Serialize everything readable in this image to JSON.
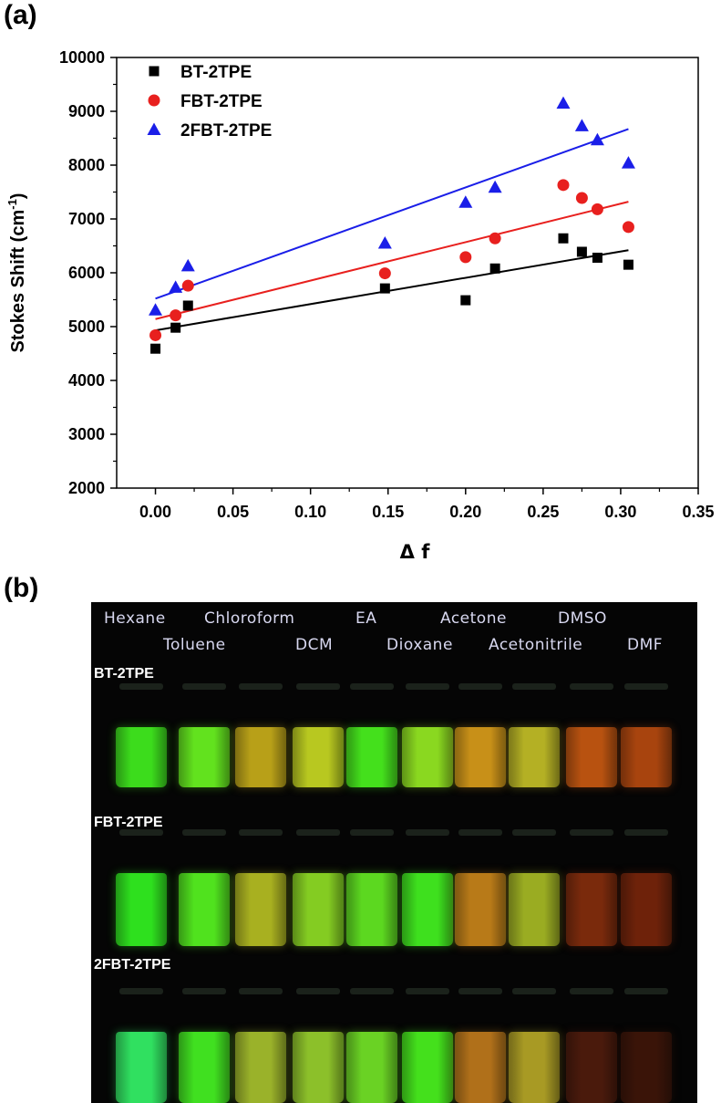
{
  "panels": {
    "a": "(a)",
    "b": "(b)"
  },
  "chart_data": {
    "type": "scatter",
    "xlabel": "Δ f",
    "ylabel": "Stokes Shift (cm",
    "ylabel_sup": "-1",
    "ylabel_close": ")",
    "xlim": [
      -0.025,
      0.35
    ],
    "ylim": [
      2000,
      10000
    ],
    "x_ticks": [
      0.0,
      0.05,
      0.1,
      0.15,
      0.2,
      0.25,
      0.3,
      0.35
    ],
    "x_tick_labels": [
      "0.00",
      "0.05",
      "0.10",
      "0.15",
      "0.20",
      "0.25",
      "0.30",
      "0.35"
    ],
    "y_ticks": [
      2000,
      3000,
      4000,
      5000,
      6000,
      7000,
      8000,
      9000,
      10000
    ],
    "y_tick_labels": [
      "2000",
      "3000",
      "4000",
      "5000",
      "6000",
      "7000",
      "8000",
      "9000",
      "10000"
    ],
    "legend_position": "top-left",
    "series": [
      {
        "name": "BT-2TPE",
        "marker": "square",
        "color": "#000000",
        "x": [
          0.0,
          0.013,
          0.021,
          0.148,
          0.2,
          0.219,
          0.263,
          0.275,
          0.285,
          0.305
        ],
        "y": [
          4590,
          4980,
          5390,
          5710,
          5490,
          6080,
          6640,
          6390,
          6280,
          6150
        ],
        "fit": [
          [
            0.0,
            4930
          ],
          [
            0.305,
            6420
          ]
        ]
      },
      {
        "name": "FBT-2TPE",
        "marker": "circle",
        "color": "#e8201e",
        "x": [
          0.0,
          0.013,
          0.021,
          0.148,
          0.2,
          0.219,
          0.263,
          0.275,
          0.285,
          0.305
        ],
        "y": [
          4840,
          5210,
          5760,
          5990,
          6290,
          6640,
          7630,
          7390,
          7180,
          6850
        ],
        "fit": [
          [
            0.0,
            5140
          ],
          [
            0.305,
            7320
          ]
        ]
      },
      {
        "name": "2FBT-2TPE",
        "marker": "triangle",
        "color": "#1a1ee8",
        "x": [
          0.0,
          0.013,
          0.021,
          0.148,
          0.2,
          0.219,
          0.263,
          0.275,
          0.285,
          0.305
        ],
        "y": [
          5310,
          5730,
          6130,
          6550,
          7310,
          7590,
          9150,
          8730,
          8470,
          8040
        ],
        "fit": [
          [
            0.0,
            5520
          ],
          [
            0.305,
            8670
          ]
        ]
      }
    ]
  },
  "photo": {
    "solvents_top": [
      "Hexane",
      "Chloroform",
      "EA",
      "Acetone",
      "DMSO"
    ],
    "solvents_bottom": [
      "Toluene",
      "DCM",
      "Dioxane",
      "Acetonitrile",
      "DMF"
    ],
    "rows": [
      {
        "label": "BT-2TPE",
        "colors": [
          "#3cdc1c",
          "#62e21e",
          "#b8a018",
          "#b8c820",
          "#44e01c",
          "#8ad820",
          "#c89018",
          "#b4b024",
          "#b85210",
          "#a8440e"
        ]
      },
      {
        "label": "FBT-2TPE",
        "colors": [
          "#2ee01e",
          "#50e21e",
          "#a8b020",
          "#84cc22",
          "#5cd820",
          "#3ee01e",
          "#b87a18",
          "#9aac22",
          "#7a2a0c",
          "#6e220a"
        ]
      },
      {
        "label": "2FBT-2TPE",
        "colors": [
          "#30e060",
          "#40e020",
          "#9ab22a",
          "#8cc02a",
          "#6ad224",
          "#44e01c",
          "#b0701a",
          "#a89a24",
          "#4a1a0c",
          "#3a1408"
        ]
      }
    ]
  }
}
